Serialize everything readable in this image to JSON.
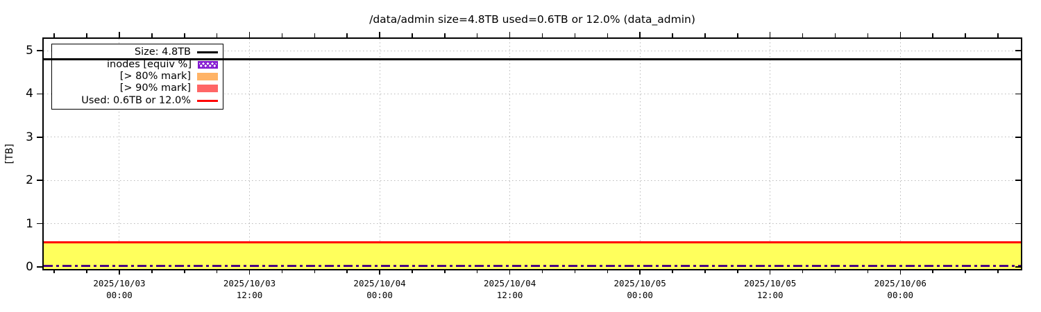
{
  "title": "/data/admin size=4.8TB used=0.6TB or 12.0% (data_admin)",
  "y_axis": {
    "label": "[TB]",
    "ticks": [
      {
        "label": "0",
        "value": 0
      },
      {
        "label": "1",
        "value": 1
      },
      {
        "label": "2",
        "value": 2
      },
      {
        "label": "3",
        "value": 3
      },
      {
        "label": "4",
        "value": 4
      },
      {
        "label": "5",
        "value": 5
      }
    ]
  },
  "x_axis": {
    "major_ticks": [
      {
        "date": "2025/10/03",
        "time": "00:00",
        "frac": 0.0774
      },
      {
        "date": "2025/10/03",
        "time": "12:00",
        "frac": 0.2106
      },
      {
        "date": "2025/10/04",
        "time": "00:00",
        "frac": 0.3438
      },
      {
        "date": "2025/10/04",
        "time": "12:00",
        "frac": 0.477
      },
      {
        "date": "2025/10/05",
        "time": "00:00",
        "frac": 0.6102
      },
      {
        "date": "2025/10/05",
        "time": "12:00",
        "frac": 0.7434
      },
      {
        "date": "2025/10/06",
        "time": "00:00",
        "frac": 0.8766
      }
    ],
    "minor_fracs": [
      0.0108,
      0.0441,
      0.1107,
      0.144,
      0.1773,
      0.2439,
      0.2772,
      0.3105,
      0.3771,
      0.4104,
      0.4437,
      0.5103,
      0.5436,
      0.5769,
      0.6435,
      0.6768,
      0.7101,
      0.7767,
      0.81,
      0.8433,
      0.9099,
      0.9432,
      0.9765
    ]
  },
  "legend": {
    "items": [
      {
        "label": "Size: 4.8TB",
        "swatch": "line",
        "color": "#000000"
      },
      {
        "label": "inodes [equiv %]",
        "swatch": "hatch",
        "color": "#8318d0"
      },
      {
        "label": "[> 80% mark]",
        "swatch": "box",
        "color": "#ffb366"
      },
      {
        "label": "[> 90% mark]",
        "swatch": "box",
        "color": "#ff6666"
      },
      {
        "label": "Used: 0.6TB or 12.0%",
        "swatch": "line",
        "color": "#ff0000"
      }
    ]
  },
  "colors": {
    "size_line": "#000000",
    "used_line": "#ff0000",
    "used_fill": "#ffff5c",
    "inodes_line": "#4b0082",
    "inodes_hatch": "#8318d0",
    "mark80": "#ffb366",
    "mark90": "#ff6666",
    "grid": "#b9b9b9"
  },
  "chart_data": {
    "type": "area",
    "title": "/data/admin size=4.8TB used=0.6TB or 12.0% (data_admin)",
    "xlabel": "",
    "ylabel": "[TB]",
    "ylim": [
      -0.06,
      5.3
    ],
    "yticks": [
      0,
      1,
      2,
      3,
      4,
      5
    ],
    "x_tick_labels": [
      "2025/10/03 00:00",
      "2025/10/03 12:00",
      "2025/10/04 00:00",
      "2025/10/04 12:00",
      "2025/10/05 00:00",
      "2025/10/05 12:00",
      "2025/10/06 00:00"
    ],
    "x_minor_tick_interval_hours": 3,
    "grid": "dotted gray at major x ticks and integer TB levels",
    "legend_position": "top-left",
    "series": [
      {
        "name": "Size: 4.8TB",
        "type": "line",
        "style": "solid",
        "color": "#000000",
        "constant_value_tb": 4.8
      },
      {
        "name": "Used: 0.6TB or 12.0%",
        "type": "line+area-fill-to-zero",
        "style": "solid",
        "line_color": "#ff0000",
        "fill_color": "#ffff5c",
        "constant_value_tb": 0.576
      },
      {
        "name": "inodes [equiv %]",
        "type": "line",
        "style": "dash-dot",
        "color": "#4b0082",
        "constant_value_tb": 0.03
      },
      {
        "name": "[> 80% mark]",
        "type": "threshold-band",
        "color": "#ffb366",
        "visible_in_plot": false
      },
      {
        "name": "[> 90% mark]",
        "type": "threshold-band",
        "color": "#ff6666",
        "visible_in_plot": false
      }
    ]
  }
}
